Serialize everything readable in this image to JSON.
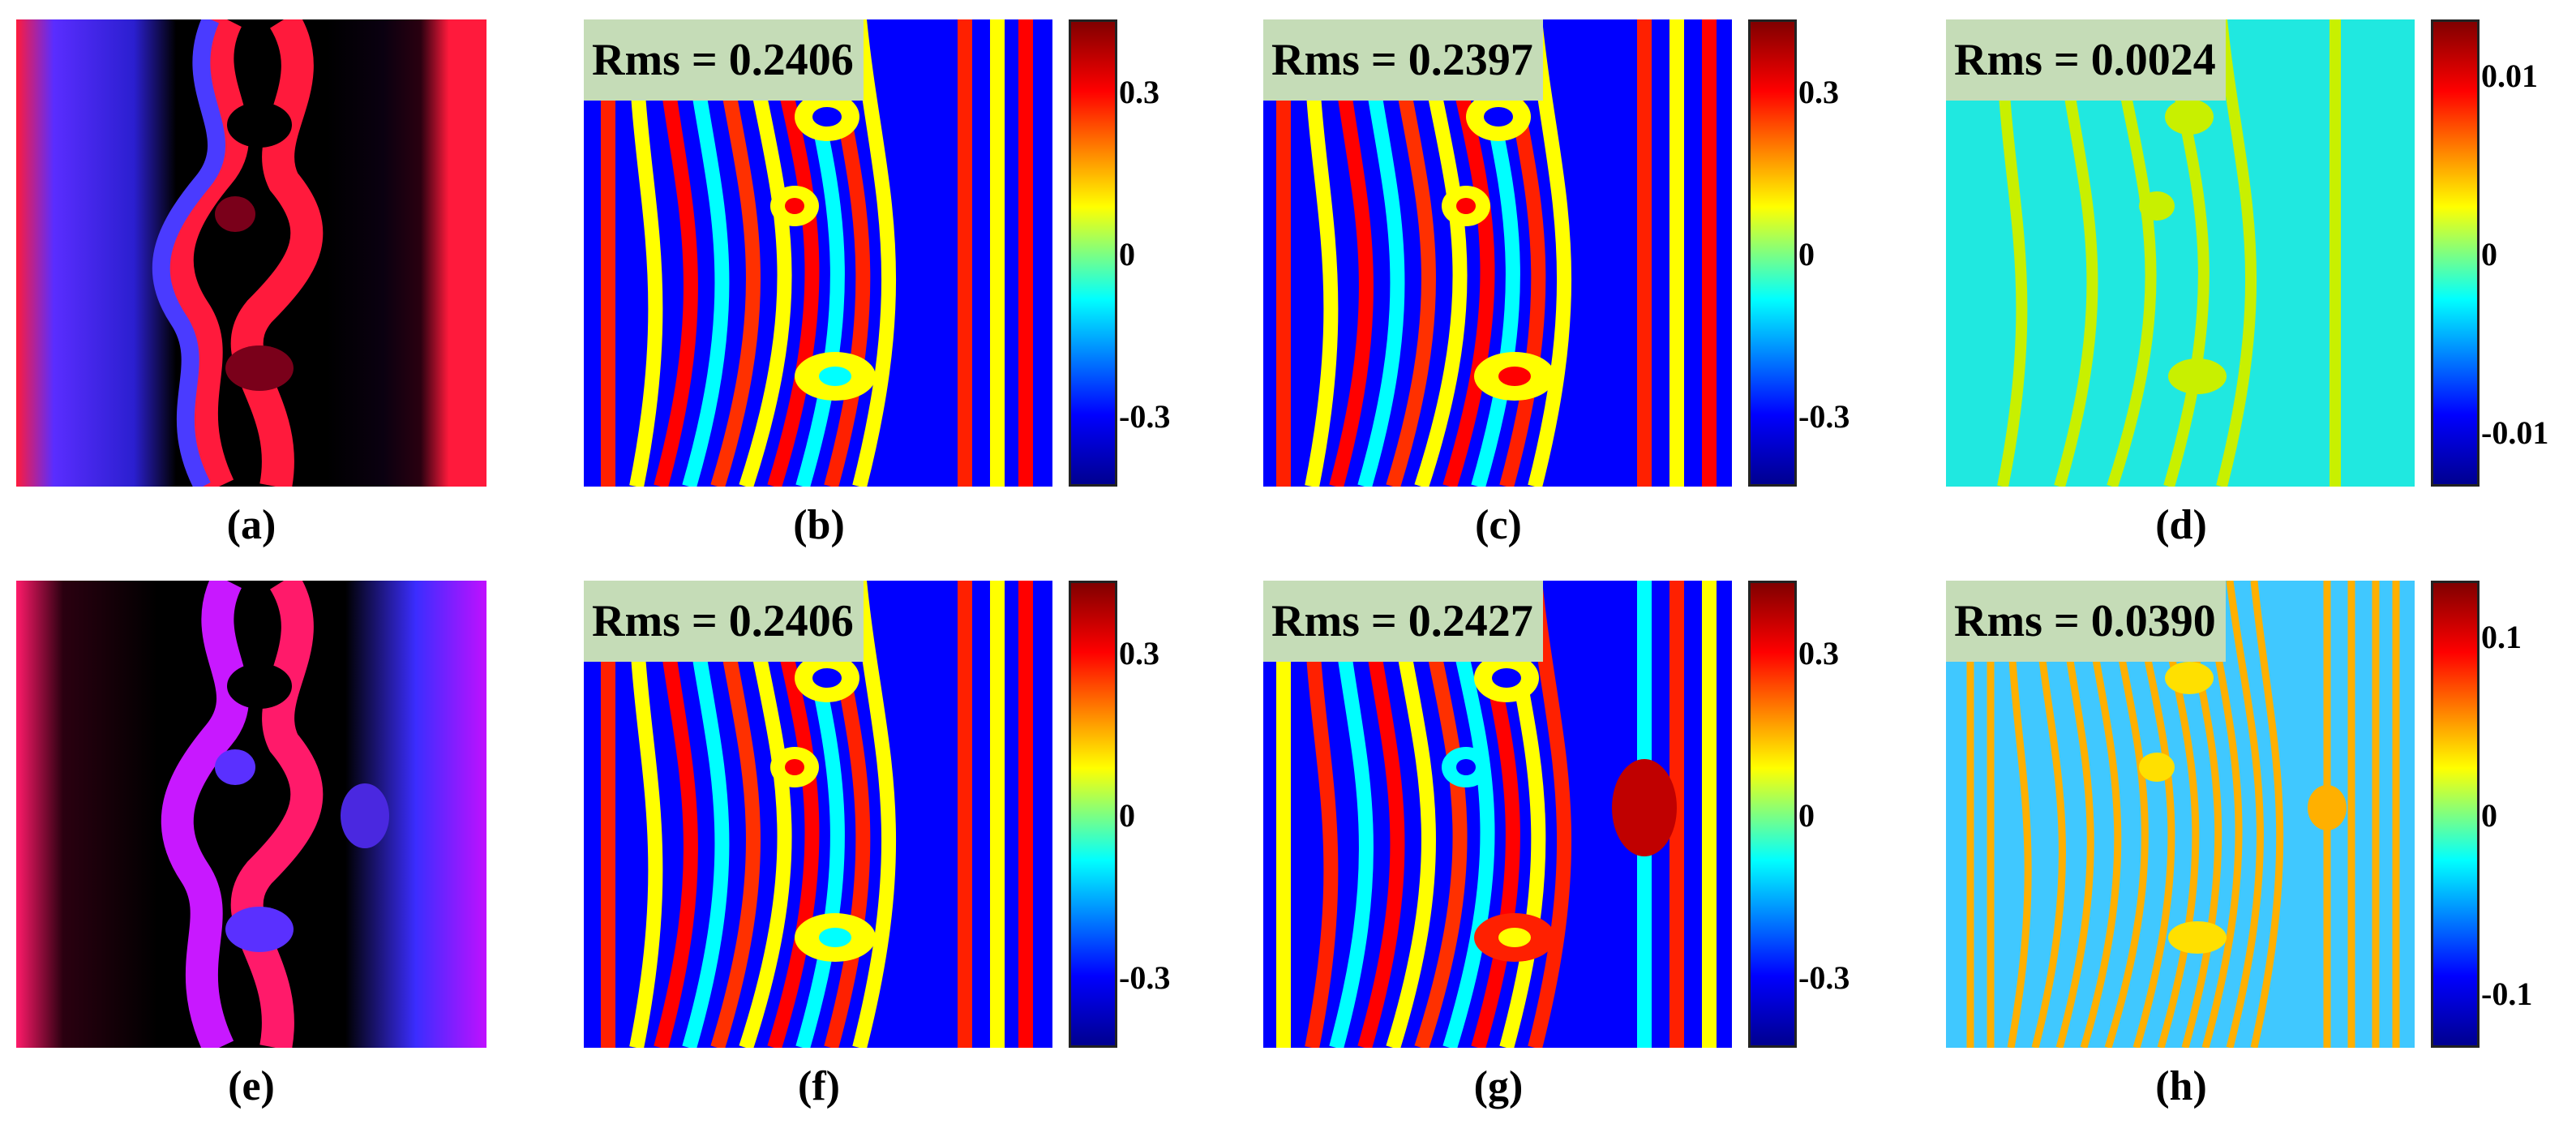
{
  "panels": [
    {
      "id": "a",
      "caption": "(a)"
    },
    {
      "id": "b",
      "caption": "(b)",
      "rms": "Rms = 0.2406",
      "colorbar": {
        "ticks": [
          "0.3",
          "0",
          "-0.3"
        ]
      }
    },
    {
      "id": "c",
      "caption": "(c)",
      "rms": "Rms = 0.2397",
      "colorbar": {
        "ticks": [
          "0.3",
          "0",
          "-0.3"
        ]
      }
    },
    {
      "id": "d",
      "caption": "(d)",
      "rms": "Rms = 0.0024",
      "colorbar": {
        "ticks": [
          "0.01",
          "0",
          "-0.01"
        ]
      }
    },
    {
      "id": "e",
      "caption": "(e)"
    },
    {
      "id": "f",
      "caption": "(f)",
      "rms": "Rms = 0.2406",
      "colorbar": {
        "ticks": [
          "0.3",
          "0",
          "-0.3"
        ]
      }
    },
    {
      "id": "g",
      "caption": "(g)",
      "rms": "Rms = 0.2427",
      "colorbar": {
        "ticks": [
          "0.3",
          "0",
          "-0.3"
        ]
      }
    },
    {
      "id": "h",
      "caption": "(h)",
      "rms": "Rms = 0.0390",
      "colorbar": {
        "ticks": [
          "0.1",
          "0",
          "-0.1"
        ]
      }
    }
  ],
  "colors": {
    "jet": [
      "#00008f",
      "#0000ff",
      "#00ffff",
      "#ffff00",
      "#ff0000",
      "#800000"
    ],
    "phase": [
      "#000000",
      "#3b2dff",
      "#ff1a3c"
    ],
    "rms_box": "#c5dcb7"
  }
}
